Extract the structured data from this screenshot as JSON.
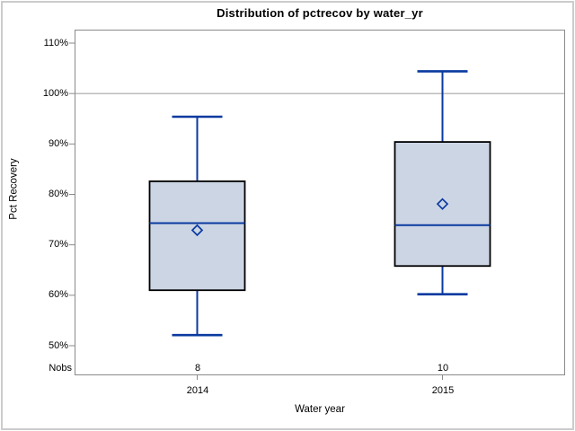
{
  "chart_data": {
    "type": "boxplot",
    "title": "Distribution of pctrecov by water_yr",
    "xlabel": "Water year",
    "ylabel": "Pct Recovery",
    "nobs_row_label": "Nobs",
    "y_axis": {
      "unit": "%",
      "tick_values": [
        110,
        100,
        90,
        80,
        70,
        60,
        50
      ],
      "tick_labels": [
        "110%",
        "100%",
        "90%",
        "80%",
        "70%",
        "60%",
        "50%"
      ],
      "ylim": [
        50,
        110
      ],
      "grid": false
    },
    "reference_line_y": 100,
    "mean_marker": "open-diamond",
    "categories": [
      "2014",
      "2015"
    ],
    "series": [
      {
        "category": "2014",
        "nobs": "8",
        "whisker_low": 52.1,
        "q1": 61.0,
        "median": 74.3,
        "mean": 72.9,
        "q3": 82.6,
        "whisker_high": 95.4
      },
      {
        "category": "2015",
        "nobs": "10",
        "whisker_low": 60.2,
        "q1": 65.8,
        "median": 73.9,
        "mean": 78.1,
        "q3": 90.4,
        "whisker_high": 104.4
      }
    ],
    "colors": {
      "box_fill": "#ccd5e4",
      "box_border": "#000000",
      "line_blue": "#0a3aa0",
      "reference_line": "#a6a6a6",
      "axis": "#8a8a8a",
      "text": "#000000",
      "figure_border": "#cccccc"
    }
  }
}
